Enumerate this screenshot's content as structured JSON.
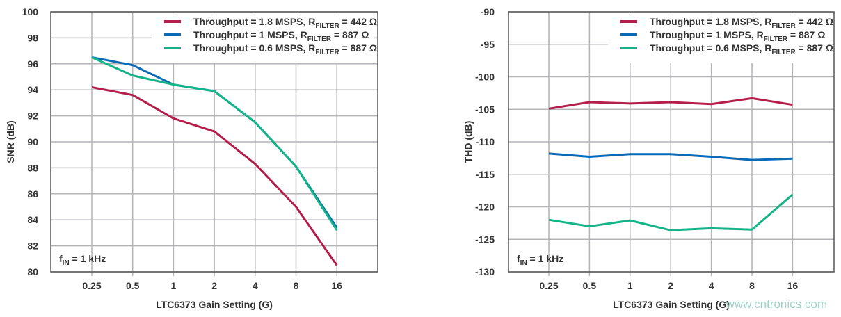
{
  "colors": {
    "red": "#b51e4a",
    "blue": "#0a6ab6",
    "green": "#12b488",
    "grid": "#b4b4b8"
  },
  "legend": [
    {
      "prefix": "Throughput = 1.8 MSPS, R",
      "sub": "FILTER",
      "suffix": " = 442 Ω"
    },
    {
      "prefix": "Throughput = 1 MSPS, R",
      "sub": "FILTER",
      "suffix": " = 887 Ω"
    },
    {
      "prefix": "Throughput = 0.6 MSPS, R",
      "sub": "FILTER",
      "suffix": " = 887 Ω"
    }
  ],
  "annotation": {
    "main": "f",
    "sub": "IN",
    "rest": " = 1 kHz"
  },
  "watermark": "www.cntronics.com",
  "chart_data": [
    {
      "type": "line",
      "xlabel": "LTC6373 Gain Setting (G)",
      "ylabel": "SNR (dB)",
      "categories": [
        "0.25",
        "0.5",
        "1",
        "2",
        "4",
        "8",
        "16"
      ],
      "ylim": [
        80,
        100
      ],
      "yticks": [
        80,
        82,
        84,
        86,
        88,
        90,
        92,
        94,
        96,
        98,
        100
      ],
      "grid": true,
      "legend_position": "top-right",
      "series": [
        {
          "name": "Throughput = 1.8 MSPS, RFILTER = 442 Ω",
          "color": "red",
          "values": [
            94.2,
            93.6,
            91.8,
            90.8,
            88.3,
            85.0,
            80.5
          ]
        },
        {
          "name": "Throughput = 1 MSPS, RFILTER = 887 Ω",
          "color": "blue",
          "values": [
            96.5,
            95.9,
            94.4,
            93.9,
            91.5,
            88.1,
            83.4
          ]
        },
        {
          "name": "Throughput = 0.6 MSPS, RFILTER = 887 Ω",
          "color": "green",
          "values": [
            96.5,
            95.1,
            94.4,
            93.9,
            91.5,
            88.1,
            83.2
          ]
        }
      ]
    },
    {
      "type": "line",
      "xlabel": "LTC6373 Gain Setting (G)",
      "ylabel": "THD (dB)",
      "categories": [
        "0.25",
        "0.5",
        "1",
        "2",
        "4",
        "8",
        "16"
      ],
      "ylim": [
        -130,
        -90
      ],
      "yticks": [
        -130,
        -125,
        -120,
        -115,
        -110,
        -105,
        -100,
        -95,
        -90
      ],
      "grid": true,
      "legend_position": "top-right",
      "series": [
        {
          "name": "Throughput = 1.8 MSPS, RFILTER = 442 Ω",
          "color": "red",
          "values": [
            -104.9,
            -103.9,
            -104.1,
            -103.9,
            -104.2,
            -103.3,
            -104.3
          ]
        },
        {
          "name": "Throughput = 1 MSPS, RFILTER = 887 Ω",
          "color": "blue",
          "values": [
            -111.8,
            -112.3,
            -111.9,
            -111.9,
            -112.3,
            -112.8,
            -112.6
          ]
        },
        {
          "name": "Throughput = 0.6 MSPS, RFILTER = 887 Ω",
          "color": "green",
          "values": [
            -122.0,
            -123.0,
            -122.1,
            -123.6,
            -123.3,
            -123.5,
            -118.1
          ]
        }
      ]
    }
  ]
}
